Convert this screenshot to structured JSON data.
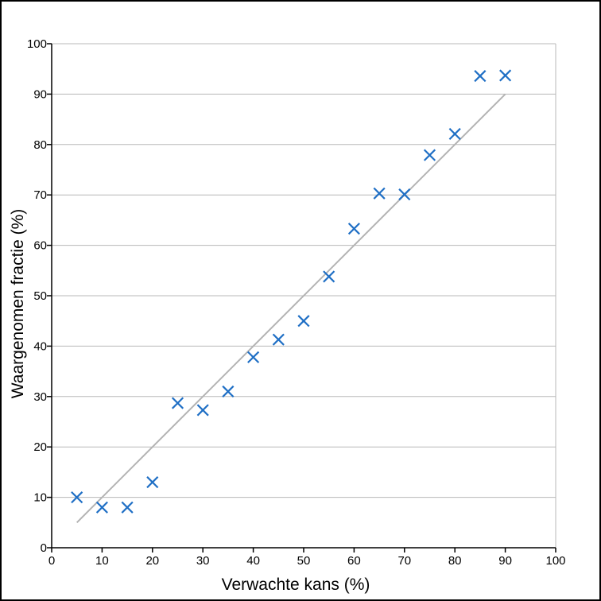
{
  "chart_data": {
    "type": "scatter",
    "xlabel": "Verwachte kans (%)",
    "ylabel": "Waargenomen fractie (%)",
    "xlim": [
      0,
      100
    ],
    "ylim": [
      0,
      100
    ],
    "xticks": [
      "0",
      "10",
      "20",
      "30",
      "40",
      "50",
      "60",
      "70",
      "80",
      "90",
      "100"
    ],
    "yticks": [
      "0",
      "10",
      "20",
      "30",
      "40",
      "50",
      "60",
      "70",
      "80",
      "90",
      "100"
    ],
    "grid": "horizontal",
    "marker": "x",
    "series": [
      {
        "color": "#1f6fc5",
        "x": [
          5,
          10,
          15,
          20,
          25,
          30,
          35,
          40,
          45,
          50,
          55,
          60,
          65,
          70,
          75,
          80,
          85,
          90
        ],
        "y": [
          10,
          8,
          8,
          13,
          28.7,
          27.3,
          31,
          37.8,
          41.3,
          45,
          53.8,
          63.3,
          70.3,
          70.1,
          77.9,
          82.1,
          93.6,
          93.7
        ]
      }
    ],
    "reference_line": {
      "x": [
        5,
        90
      ],
      "y": [
        5,
        90
      ],
      "color": "#b3b3b3"
    }
  }
}
